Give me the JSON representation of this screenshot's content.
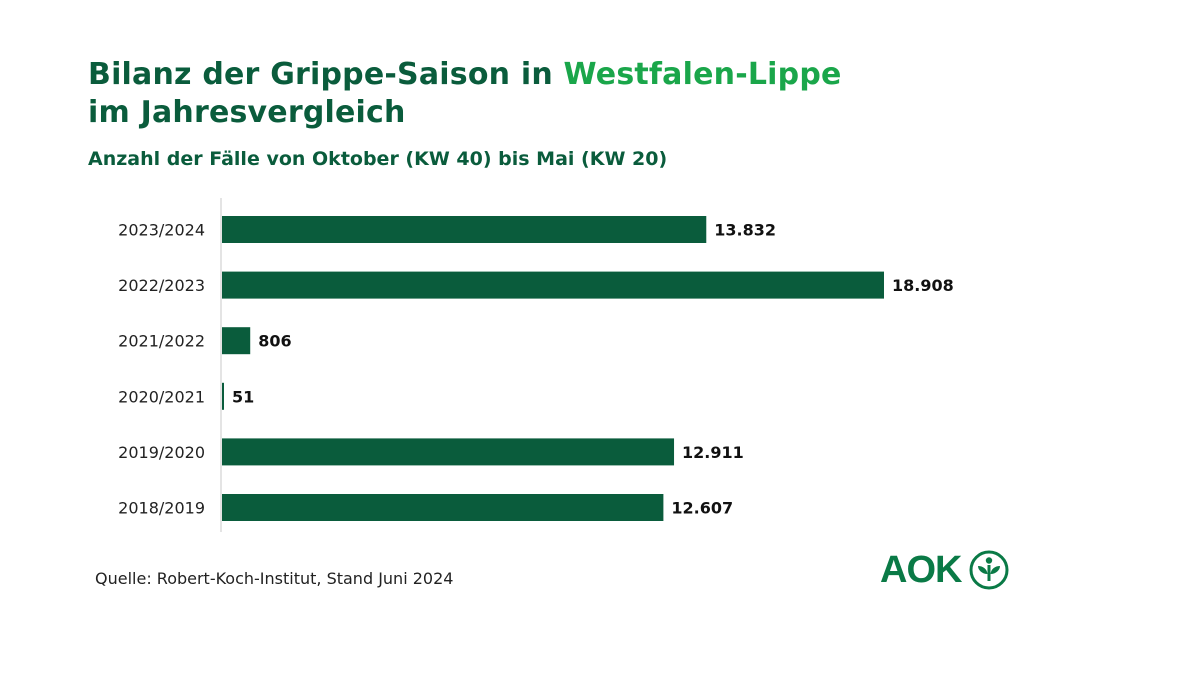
{
  "header": {
    "title_part1": "Bilanz der Grippe-Saison in ",
    "title_accent": "Westfalen-Lippe",
    "title_part2": "im Jahresvergleich",
    "subtitle": "Anzahl der Fälle von Oktober (KW 40) bis Mai (KW 20)"
  },
  "footer": {
    "source": "Quelle: Robert-Koch-Institut, Stand Juni 2024",
    "logo_text": "AOK"
  },
  "colors": {
    "bar": "#0a5c3c",
    "title": "#0a5c3c",
    "accent": "#1aa64a",
    "logo": "#0a7a46"
  },
  "chart_data": {
    "type": "bar",
    "orientation": "horizontal",
    "categories": [
      "2023/2024",
      "2022/2023",
      "2021/2022",
      "2020/2021",
      "2019/2020",
      "2018/2019"
    ],
    "values": [
      13832,
      18908,
      806,
      51,
      12911,
      12607
    ],
    "value_labels": [
      "13.832",
      "18.908",
      "806",
      "51",
      "12.911",
      "12.607"
    ],
    "title": "Bilanz der Grippe-Saison in Westfalen-Lippe im Jahresvergleich",
    "subtitle": "Anzahl der Fälle von Oktober (KW 40) bis Mai (KW 20)",
    "xlim": [
      0,
      18908
    ],
    "grid": false,
    "legend": "none"
  }
}
